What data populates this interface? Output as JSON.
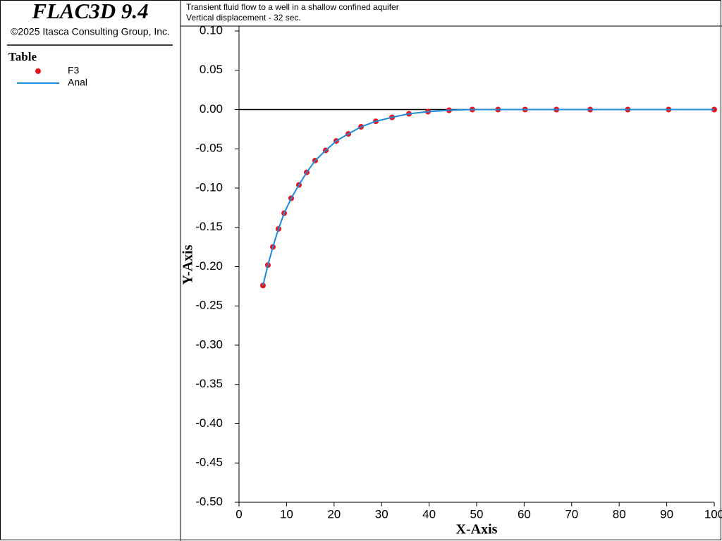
{
  "app": {
    "title": "FLAC3D 9.4",
    "copyright": "©2025 Itasca Consulting Group, Inc."
  },
  "chart_data": {
    "type": "line",
    "title": "Transient fluid flow to a well in a shallow confined aquifer",
    "subtitle": "Vertical displacement - 32 sec.",
    "legend_title": "Table",
    "x_label": "X-Axis",
    "y_label": "Y-Axis",
    "x": [
      5.04,
      6.08,
      7.12,
      8.31,
      9.5,
      10.98,
      12.61,
      14.24,
      16.02,
      18.25,
      20.47,
      23.0,
      25.67,
      28.78,
      32.2,
      35.76,
      39.76,
      44.2,
      49.1,
      54.5,
      60.2,
      66.8,
      73.9,
      81.8,
      90.4,
      100
    ],
    "series": [
      {
        "name": "F3",
        "color": "#e8141e",
        "marker": "circle",
        "values": [
          -0.224,
          -0.198,
          -0.175,
          -0.152,
          -0.132,
          -0.113,
          -0.096,
          -0.08,
          -0.065,
          -0.052,
          -0.04,
          -0.031,
          -0.022,
          -0.015,
          -0.01,
          -0.0054,
          -0.0027,
          -0.0009,
          0,
          0,
          0,
          0,
          0,
          0,
          0,
          0
        ]
      },
      {
        "name": "Anal",
        "color": "#1f8ad8",
        "marker": "line",
        "values": [
          -0.224,
          -0.198,
          -0.175,
          -0.152,
          -0.132,
          -0.113,
          -0.096,
          -0.08,
          -0.065,
          -0.052,
          -0.04,
          -0.031,
          -0.022,
          -0.015,
          -0.01,
          -0.0054,
          -0.0027,
          -0.0009,
          0,
          0,
          0,
          0,
          0,
          0,
          0,
          0
        ]
      }
    ],
    "xlim": [
      0,
      100
    ],
    "xticks": [
      0,
      10,
      20,
      30,
      40,
      50,
      60,
      70,
      80,
      90,
      100
    ],
    "ylim": [
      -0.5,
      0.1
    ],
    "yticks": [
      {
        "value": 0.1,
        "label": "0.10"
      },
      {
        "value": 0.05,
        "label": "0.05"
      },
      {
        "value": 0,
        "label": "0.00"
      },
      {
        "value": -0.05,
        "label": "-0.05"
      },
      {
        "value": -0.1,
        "label": "-0.10"
      },
      {
        "value": -0.15,
        "label": "-0.15"
      },
      {
        "value": -0.2,
        "label": "-0.20"
      },
      {
        "value": -0.25,
        "label": "-0.25"
      },
      {
        "value": -0.3,
        "label": "-0.30"
      },
      {
        "value": -0.35,
        "label": "-0.35"
      },
      {
        "value": -0.4,
        "label": "-0.40"
      },
      {
        "value": -0.45,
        "label": "-0.45"
      },
      {
        "value": -0.5,
        "label": "-0.50"
      }
    ]
  }
}
